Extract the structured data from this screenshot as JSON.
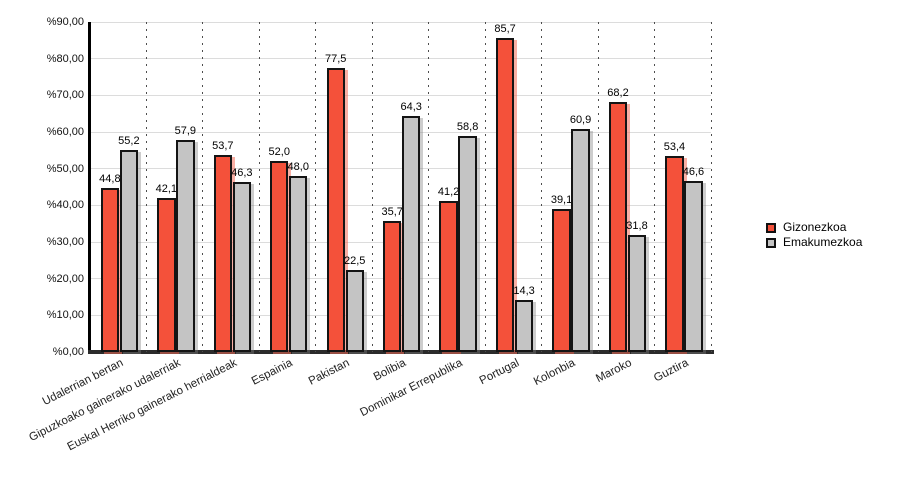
{
  "chart_data": {
    "type": "bar",
    "title": "",
    "xlabel": "",
    "ylabel": "",
    "ylim": [
      0,
      90
    ],
    "y_tick_step": 10,
    "yticks": [
      "%0,00",
      "%10,00",
      "%20,00",
      "%30,00",
      "%40,00",
      "%50,00",
      "%60,00",
      "%70,00",
      "%80,00",
      "%90,00"
    ],
    "grid": "horizontal solid gray lines, vertical dotted category separators",
    "legend_position": "right",
    "categories": [
      "Udalerrian bertan",
      "Gipuzkoako gainerako udalerriak",
      "Euskal Herriko gainerako herrialdeak",
      "Espainia",
      "Pakistan",
      "Bolibia",
      "Dominikar Errepublika",
      "Portugal",
      "Kolonbia",
      "Maroko",
      "Guztira"
    ],
    "series": [
      {
        "name": "Gizonezkoa",
        "color": "#f4513a",
        "shadow_color": "rgba(244,110,90,0.55)",
        "values": [
          44.8,
          42.1,
          53.7,
          52.0,
          77.5,
          35.7,
          41.2,
          85.7,
          39.1,
          68.2,
          53.4
        ],
        "value_labels": [
          "44,8",
          "42,1",
          "53,7",
          "52,0",
          "77,5",
          "35,7",
          "41,2",
          "85,7",
          "39,1",
          "68,2",
          "53,4"
        ]
      },
      {
        "name": "Emakumezkoa",
        "color": "#c4c4c4",
        "shadow_color": "rgba(130,130,130,0.40)",
        "values": [
          55.2,
          57.9,
          46.3,
          48.0,
          22.5,
          64.3,
          58.8,
          14.3,
          60.9,
          31.8,
          46.6
        ],
        "value_labels": [
          "55,2",
          "57,9",
          "46,3",
          "48,0",
          "22,5",
          "64,3",
          "58,8",
          "14,3",
          "60,9",
          "31,8",
          "46,6"
        ]
      }
    ]
  },
  "colors": {
    "axis": "#000000",
    "baseline": "#2b2b2b",
    "gridline": "#dcdcdc",
    "separator_dots": "#4d4d4d",
    "bar_border": "#141414",
    "background": "#ffffff"
  }
}
